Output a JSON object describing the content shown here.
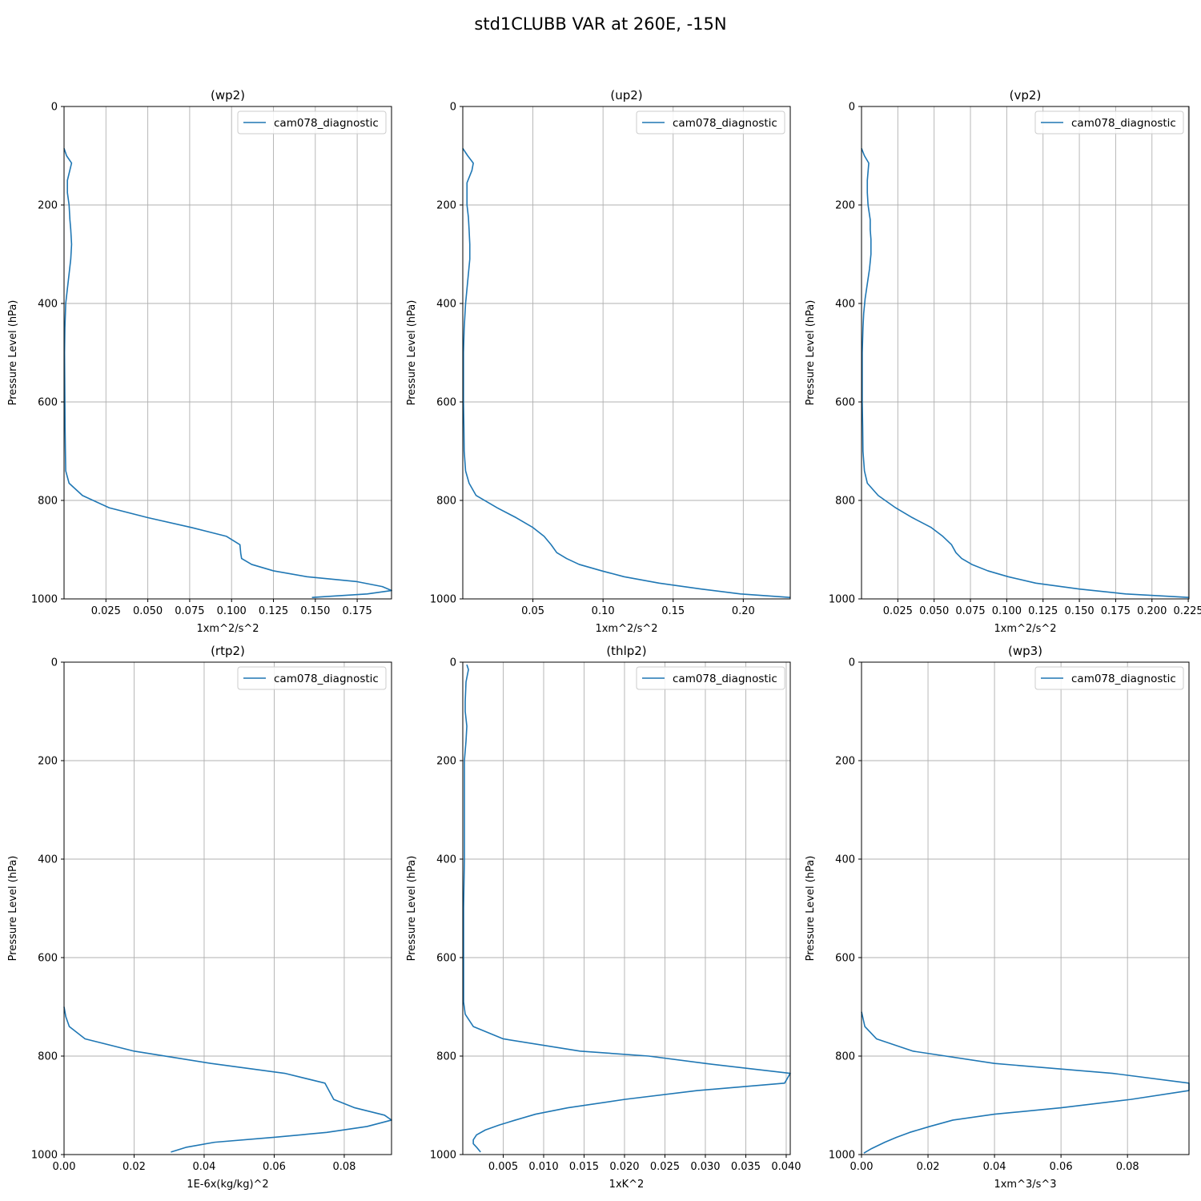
{
  "figure": {
    "title": "std1CLUBB VAR at 260E, -15N"
  },
  "style": {
    "line_color": "#1f77b4",
    "grid_color": "#b0b0b0"
  },
  "chart_data": [
    {
      "type": "line",
      "title": "(wp2)",
      "xlabel": "1xm^2/s^2",
      "ylabel": "Pressure Level (hPa)",
      "xlim": [
        0.0,
        0.1955
      ],
      "ylim": [
        1000,
        0
      ],
      "y_inverted": true,
      "xticks": [
        0.025,
        0.05,
        0.075,
        0.1,
        0.125,
        0.15,
        0.175
      ],
      "xtick_labels": [
        "0.025",
        "0.050",
        "0.075",
        "0.100",
        "0.125",
        "0.150",
        "0.175"
      ],
      "yticks": [
        0,
        200,
        400,
        600,
        800,
        1000
      ],
      "ytick_labels": [
        "0",
        "200",
        "400",
        "600",
        "800",
        "1000"
      ],
      "grid": true,
      "legend_position": "top-right",
      "series": [
        {
          "name": "cam078_diagnostic",
          "x": [
            0.0,
            0.0015,
            0.0045,
            0.002,
            0.002,
            0.003,
            0.0035,
            0.004,
            0.0045,
            0.004,
            0.003,
            0.002,
            0.001,
            0.0005,
            0.0003,
            0.0004,
            0.0005,
            0.0006,
            0.0008,
            0.001,
            0.003,
            0.011,
            0.027,
            0.05,
            0.076,
            0.097,
            0.105,
            0.1055,
            0.106,
            0.112,
            0.125,
            0.145,
            0.175,
            0.19,
            0.1955,
            0.181,
            0.148
          ],
          "y": [
            85,
            100,
            115,
            150,
            175,
            200,
            230,
            250,
            280,
            310,
            340,
            370,
            400,
            450,
            500,
            550,
            600,
            650,
            700,
            740,
            765,
            790,
            815,
            835,
            855,
            873,
            890,
            908,
            918,
            930,
            943,
            955,
            965,
            975,
            983,
            990,
            997
          ]
        }
      ]
    },
    {
      "type": "line",
      "title": "(up2)",
      "xlabel": "1xm^2/s^2",
      "ylabel": "Pressure Level (hPa)",
      "xlim": [
        0.0,
        0.2335
      ],
      "ylim": [
        1000,
        0
      ],
      "y_inverted": true,
      "xticks": [
        0.05,
        0.1,
        0.15,
        0.2
      ],
      "xtick_labels": [
        "0.05",
        "0.10",
        "0.15",
        "0.20"
      ],
      "yticks": [
        0,
        200,
        400,
        600,
        800,
        1000
      ],
      "ytick_labels": [
        "0",
        "200",
        "400",
        "600",
        "800",
        "1000"
      ],
      "grid": true,
      "legend_position": "top-right",
      "series": [
        {
          "name": "cam078_diagnostic",
          "x": [
            0.0,
            0.0035,
            0.0075,
            0.0065,
            0.003,
            0.003,
            0.004,
            0.0045,
            0.005,
            0.005,
            0.004,
            0.003,
            0.002,
            0.001,
            0.0005,
            0.0005,
            0.0005,
            0.0008,
            0.001,
            0.002,
            0.0045,
            0.0095,
            0.0245,
            0.038,
            0.05,
            0.058,
            0.063,
            0.067,
            0.074,
            0.083,
            0.099,
            0.115,
            0.14,
            0.17,
            0.198,
            0.2335
          ],
          "y": [
            85,
            100,
            115,
            130,
            155,
            200,
            225,
            250,
            280,
            310,
            340,
            370,
            400,
            450,
            500,
            550,
            600,
            650,
            700,
            740,
            765,
            790,
            815,
            835,
            855,
            873,
            890,
            906,
            918,
            930,
            943,
            955,
            968,
            980,
            990,
            997
          ]
        }
      ]
    },
    {
      "type": "line",
      "title": "(vp2)",
      "xlabel": "1xm^2/s^2",
      "ylabel": "Pressure Level (hPa)",
      "xlim": [
        0.0,
        0.2255
      ],
      "ylim": [
        1000,
        0
      ],
      "y_inverted": true,
      "xticks": [
        0.025,
        0.05,
        0.075,
        0.1,
        0.125,
        0.15,
        0.175,
        0.2,
        0.225
      ],
      "xtick_labels": [
        "0.025",
        "0.050",
        "0.075",
        "0.100",
        "0.125",
        "0.150",
        "0.175",
        "0.200",
        "0.225"
      ],
      "yticks": [
        0,
        200,
        400,
        600,
        800,
        1000
      ],
      "ytick_labels": [
        "0",
        "200",
        "400",
        "600",
        "800",
        "1000"
      ],
      "grid": true,
      "legend_position": "top-right",
      "series": [
        {
          "name": "cam078_diagnostic",
          "x": [
            0.0,
            0.002,
            0.005,
            0.004,
            0.004,
            0.0045,
            0.006,
            0.006,
            0.0065,
            0.0065,
            0.0055,
            0.004,
            0.0025,
            0.0015,
            0.001,
            0.0005,
            0.0005,
            0.0005,
            0.0008,
            0.001,
            0.002,
            0.004,
            0.0115,
            0.0235,
            0.035,
            0.048,
            0.056,
            0.062,
            0.065,
            0.069,
            0.076,
            0.087,
            0.101,
            0.12,
            0.15,
            0.182,
            0.2255
          ],
          "y": [
            85,
            100,
            115,
            150,
            175,
            200,
            230,
            250,
            270,
            300,
            330,
            360,
            390,
            420,
            450,
            500,
            550,
            600,
            650,
            700,
            740,
            765,
            790,
            815,
            835,
            855,
            873,
            890,
            906,
            918,
            930,
            943,
            955,
            968,
            980,
            990,
            997
          ]
        }
      ]
    },
    {
      "type": "line",
      "title": "(rtp2)",
      "xlabel": "1E-6x(kg/kg)^2",
      "ylabel": "Pressure Level (hPa)",
      "xlim": [
        0.0,
        0.0935
      ],
      "ylim": [
        1000,
        0
      ],
      "y_inverted": true,
      "xticks": [
        0.0,
        0.02,
        0.04,
        0.06,
        0.08
      ],
      "xtick_labels": [
        "0.00",
        "0.02",
        "0.04",
        "0.06",
        "0.08"
      ],
      "yticks": [
        0,
        200,
        400,
        600,
        800,
        1000
      ],
      "ytick_labels": [
        "0",
        "200",
        "400",
        "600",
        "800",
        "1000"
      ],
      "grid": true,
      "legend_position": "top-right",
      "series": [
        {
          "name": "cam078_diagnostic",
          "x": [
            0.0,
            0.0005,
            0.0015,
            0.006,
            0.02,
            0.042,
            0.063,
            0.0745,
            0.077,
            0.083,
            0.0915,
            0.0935,
            0.0865,
            0.075,
            0.06,
            0.043,
            0.035,
            0.0305
          ],
          "y": [
            700,
            720,
            740,
            765,
            790,
            815,
            835,
            855,
            888,
            905,
            920,
            930,
            943,
            955,
            965,
            975,
            985,
            995
          ]
        }
      ]
    },
    {
      "type": "line",
      "title": "(thlp2)",
      "xlabel": "1xK^2",
      "ylabel": "Pressure Level (hPa)",
      "xlim": [
        0.0,
        0.0405
      ],
      "ylim": [
        1000,
        0
      ],
      "y_inverted": true,
      "xticks": [
        0.005,
        0.01,
        0.015,
        0.02,
        0.025,
        0.03,
        0.035,
        0.04
      ],
      "xtick_labels": [
        "0.005",
        "0.010",
        "0.015",
        "0.020",
        "0.025",
        "0.030",
        "0.035",
        "0.040"
      ],
      "yticks": [
        0,
        200,
        400,
        600,
        800,
        1000
      ],
      "ytick_labels": [
        "0",
        "200",
        "400",
        "600",
        "800",
        "1000"
      ],
      "grid": true,
      "legend_position": "top-right",
      "series": [
        {
          "name": "cam078_diagnostic",
          "x": [
            0.0005,
            0.0007,
            0.0004,
            0.0003,
            0.0003,
            0.0005,
            0.0004,
            0.0002,
            0.0002,
            0.0002,
            0.0001,
            0.0001,
            0.0001,
            0.0001,
            0.0001,
            0.0003,
            0.0013,
            0.005,
            0.0145,
            0.023,
            0.03,
            0.0405,
            0.0398,
            0.029,
            0.02,
            0.013,
            0.009,
            0.0065,
            0.0045,
            0.0028,
            0.0017,
            0.0013,
            0.0013,
            0.0017,
            0.0022
          ],
          "y": [
            5,
            15,
            40,
            80,
            100,
            130,
            160,
            200,
            300,
            400,
            500,
            550,
            600,
            650,
            690,
            715,
            740,
            765,
            790,
            800,
            815,
            835,
            855,
            870,
            888,
            905,
            918,
            930,
            940,
            950,
            960,
            970,
            978,
            985,
            995
          ]
        }
      ]
    },
    {
      "type": "line",
      "title": "(wp3)",
      "xlabel": "1xm^3/s^3",
      "ylabel": "Pressure Level (hPa)",
      "xlim": [
        0.0,
        0.0985
      ],
      "ylim": [
        1000,
        0
      ],
      "y_inverted": true,
      "xticks": [
        0.0,
        0.02,
        0.04,
        0.06,
        0.08
      ],
      "xtick_labels": [
        "0.00",
        "0.02",
        "0.04",
        "0.06",
        "0.08"
      ],
      "yticks": [
        0,
        200,
        400,
        600,
        800,
        1000
      ],
      "ytick_labels": [
        "0",
        "200",
        "400",
        "600",
        "800",
        "1000"
      ],
      "grid": true,
      "legend_position": "top-right",
      "series": [
        {
          "name": "cam078_diagnostic",
          "x": [
            0.0,
            0.0005,
            0.001,
            0.0045,
            0.0155,
            0.04,
            0.0755,
            0.0985,
            0.0985,
            0.081,
            0.06,
            0.04,
            0.0275,
            0.0205,
            0.0145,
            0.0105,
            0.007,
            0.003,
            0.0007
          ],
          "y": [
            710,
            725,
            740,
            765,
            790,
            815,
            835,
            855,
            870,
            888,
            905,
            918,
            930,
            943,
            955,
            965,
            975,
            988,
            997
          ]
        }
      ]
    }
  ]
}
